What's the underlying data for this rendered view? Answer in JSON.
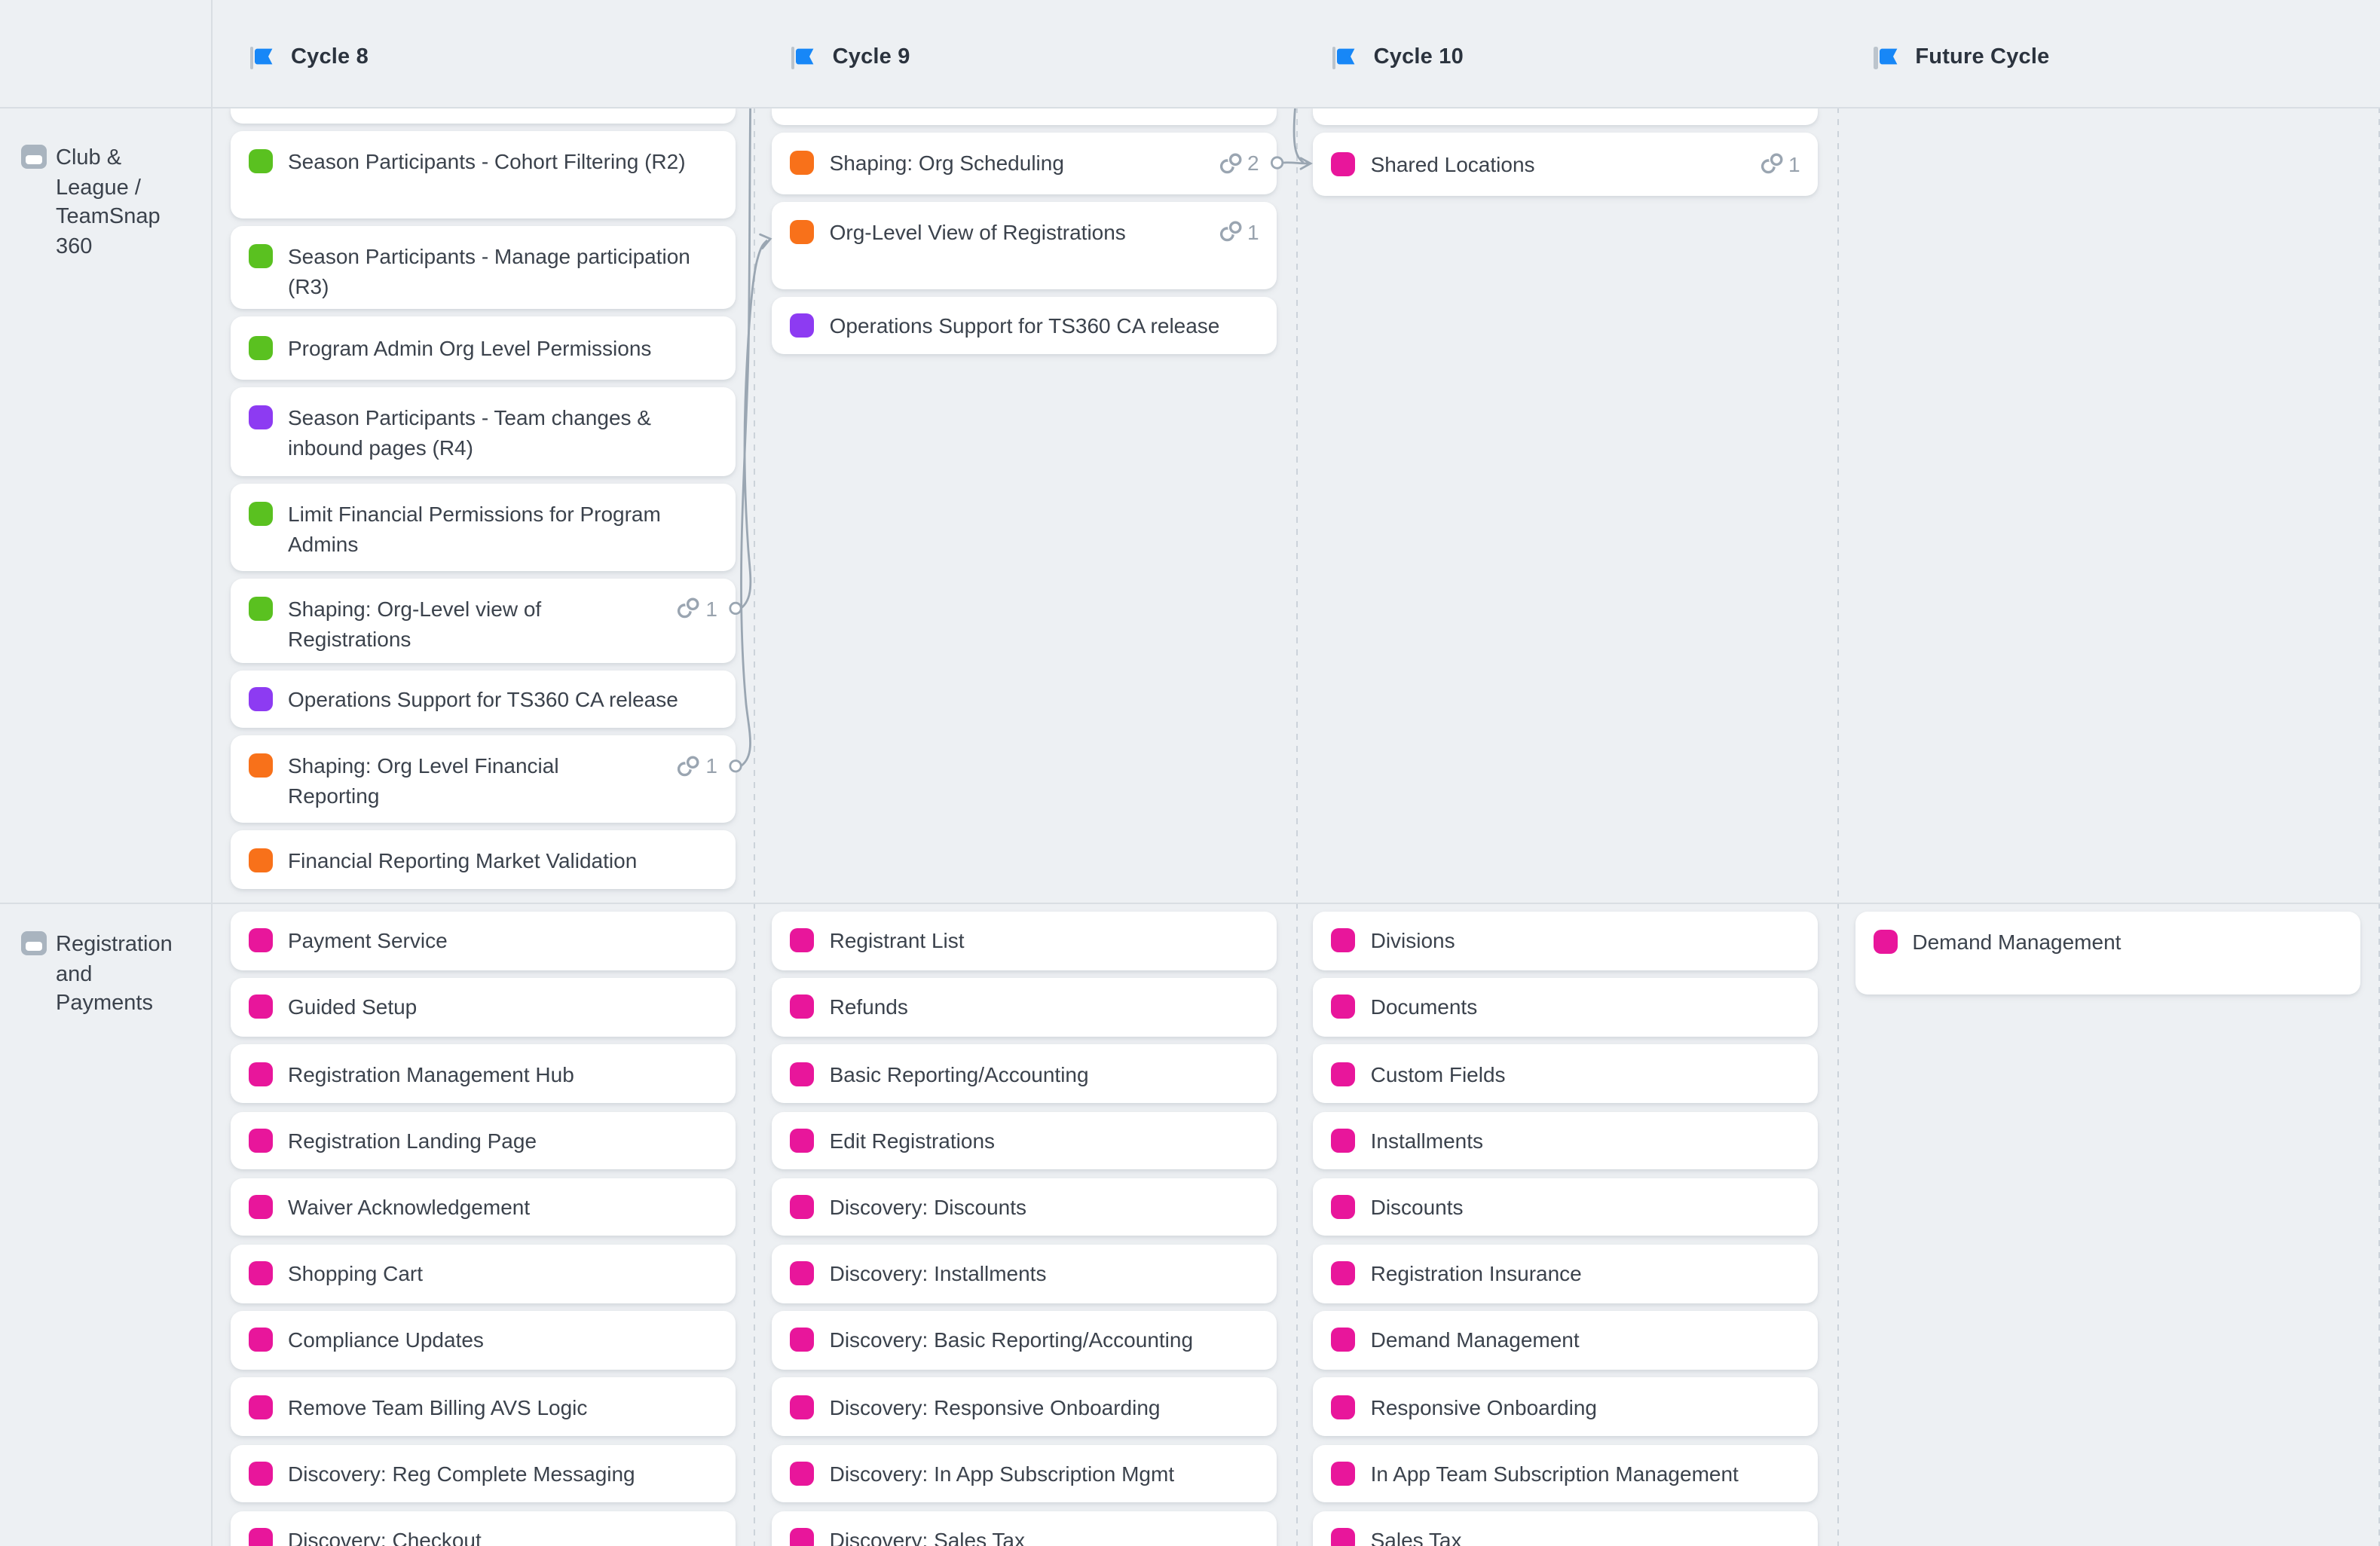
{
  "colors": {
    "background": "#edf0f3",
    "card": "#ffffff",
    "divider": "#d9dee3",
    "dashed_separator": "#ccd3da",
    "flag_blue": "#1787f7",
    "connector_gray": "#9aa6b2",
    "card_text": "#3b424c",
    "header_text": "#2b333e",
    "muted_gray": "#98a2ad",
    "chip": {
      "green": "#5ac120",
      "orange": "#f8711a",
      "purple": "#8d3bf2",
      "pink": "#e8169b"
    }
  },
  "header": {
    "columns": [
      {
        "label": "Cycle 8"
      },
      {
        "label": "Cycle 9"
      },
      {
        "label": "Cycle 10"
      },
      {
        "label": "Future Cycle"
      }
    ]
  },
  "rows": [
    {
      "label": "Club & League / TeamSnap 360",
      "columns": [
        {
          "cards": [
            {
              "partial": true,
              "h": 11
            },
            {
              "title": "Season Participants - Cohort Filtering (R2)",
              "color": "green",
              "h": 57.5,
              "align": "top"
            },
            {
              "lines": [
                "Season Participants - Manage participation",
                "(R3)"
              ],
              "color": "green",
              "h": 55.5
            },
            {
              "title": "Program Admin Org Level Permissions",
              "color": "green",
              "h": 41.7
            },
            {
              "lines": [
                "Season Participants - Team changes &",
                "inbound pages (R4)"
              ],
              "color": "purple",
              "h": 59
            },
            {
              "lines": [
                "Limit Financial Permissions for Program",
                "Admins"
              ],
              "color": "green",
              "h": 58
            },
            {
              "lines": [
                "Shaping: Org-Level view of",
                "Registrations"
              ],
              "color": "green",
              "h": 56,
              "links": 1
            },
            {
              "title": "Operations Support for TS360 CA release",
              "color": "purple",
              "h": 38.7
            },
            {
              "lines": [
                "Shaping: Org Level Financial",
                "Reporting"
              ],
              "color": "orange",
              "h": 58,
              "links": 1
            },
            {
              "title": "Financial Reporting Market Validation",
              "color": "orange",
              "h": 38.5
            }
          ]
        },
        {
          "cards": [
            {
              "partial": true,
              "h": 11.5
            },
            {
              "title": "Shaping: Org Scheduling",
              "color": "orange",
              "h": 41,
              "links": 2
            },
            {
              "title": "Org-Level View of Registrations",
              "color": "orange",
              "h": 58,
              "links": 1,
              "align": "top"
            },
            {
              "title": "Operations Support for TS360 CA release",
              "color": "purple",
              "h": 38.5
            }
          ]
        },
        {
          "cards": [
            {
              "partial": true,
              "h": 11.5
            },
            {
              "title": "Shared Locations",
              "color": "pink",
              "h": 42,
              "links": 1
            }
          ]
        },
        {
          "cards": []
        }
      ]
    },
    {
      "label": "Registration and Payments",
      "columns": [
        {
          "cards": [
            {
              "title": "Payment Service",
              "color": "pink",
              "h": 38.5
            },
            {
              "title": "Guided Setup",
              "color": "pink",
              "h": 38.5
            },
            {
              "title": "Registration Management Hub",
              "color": "pink",
              "h": 38.5
            },
            {
              "title": "Registration Landing Page",
              "color": "pink",
              "h": 38.5
            },
            {
              "title": "Waiver Acknowledgement",
              "color": "pink",
              "h": 38.5
            },
            {
              "title": "Shopping Cart",
              "color": "pink",
              "h": 38.5
            },
            {
              "title": "Compliance Updates",
              "color": "pink",
              "h": 38.5
            },
            {
              "title": "Remove Team Billing AVS Logic",
              "color": "pink",
              "h": 38.5
            },
            {
              "title": "Discovery: Reg Complete Messaging",
              "color": "pink",
              "h": 38.5
            },
            {
              "title": "Discovery: Checkout",
              "color": "pink",
              "h": 38.5
            }
          ]
        },
        {
          "cards": [
            {
              "title": "Registrant List",
              "color": "pink",
              "h": 38.5
            },
            {
              "title": "Refunds",
              "color": "pink",
              "h": 38.5
            },
            {
              "title": "Basic Reporting/Accounting",
              "color": "pink",
              "h": 38.5
            },
            {
              "title": "Edit Registrations",
              "color": "pink",
              "h": 38.5
            },
            {
              "title": "Discovery: Discounts",
              "color": "pink",
              "h": 38.5
            },
            {
              "title": "Discovery: Installments",
              "color": "pink",
              "h": 38.5
            },
            {
              "title": "Discovery: Basic Reporting/Accounting",
              "color": "pink",
              "h": 38.5
            },
            {
              "title": "Discovery: Responsive Onboarding",
              "color": "pink",
              "h": 38.5
            },
            {
              "title": "Discovery: In App Subscription Mgmt",
              "color": "pink",
              "h": 38.5
            },
            {
              "title": "Discovery: Sales Tax",
              "color": "pink",
              "h": 38.5
            }
          ]
        },
        {
          "cards": [
            {
              "title": "Divisions",
              "color": "pink",
              "h": 38.5
            },
            {
              "title": "Documents",
              "color": "pink",
              "h": 38.5
            },
            {
              "title": "Custom Fields",
              "color": "pink",
              "h": 38.5
            },
            {
              "title": "Installments",
              "color": "pink",
              "h": 38.5
            },
            {
              "title": "Discounts",
              "color": "pink",
              "h": 38.5
            },
            {
              "title": "Registration Insurance",
              "color": "pink",
              "h": 38.5
            },
            {
              "title": "Demand Management",
              "color": "pink",
              "h": 38.5
            },
            {
              "title": "Responsive Onboarding",
              "color": "pink",
              "h": 38.5
            },
            {
              "title": "In App Team Subscription Management",
              "color": "pink",
              "h": 38.5
            },
            {
              "title": "Sales Tax",
              "color": "pink",
              "h": 38.5
            }
          ]
        },
        {
          "cards": [
            {
              "title": "Demand Management",
              "color": "pink",
              "h": 55,
              "align": "top"
            }
          ]
        }
      ]
    }
  ],
  "connectors": [
    {
      "from": "Shaping: Org-Level view of Registrations (Cycle 8)",
      "to": "Org-Level View of Registrations (Cycle 9)"
    },
    {
      "from": "Shaping: Org Level Financial Reporting (Cycle 8)",
      "to": "off-screen above (Cycle 9 edge)"
    },
    {
      "from": "Shaping: Org Scheduling (Cycle 9)",
      "to": "Shared Locations (Cycle 10)"
    },
    {
      "from": "off-screen above (Cycle 10 edge)",
      "to": "Shared Locations (Cycle 10)"
    }
  ]
}
